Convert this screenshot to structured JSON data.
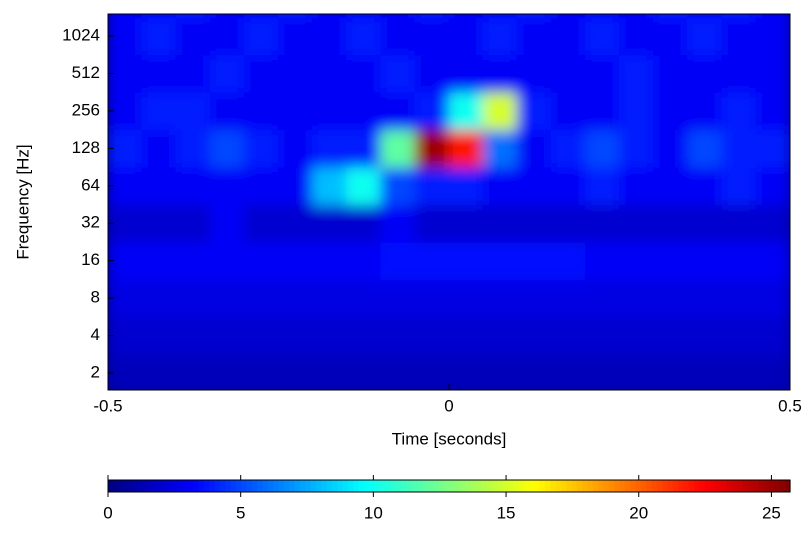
{
  "chart_data": {
    "type": "heatmap",
    "xlabel": "Time [seconds]",
    "ylabel": "Frequency [Hz]",
    "xlim": [
      -0.5,
      0.5
    ],
    "xticks": [
      -0.5,
      0,
      0.5
    ],
    "ylim": [
      1.46,
      1540
    ],
    "yscale": "log2",
    "yticks": [
      2,
      4,
      8,
      16,
      32,
      64,
      128,
      256,
      512,
      1024
    ],
    "x": [
      -0.475,
      -0.425,
      -0.375,
      -0.325,
      -0.275,
      -0.225,
      -0.175,
      -0.125,
      -0.075,
      -0.025,
      0.025,
      0.075,
      0.125,
      0.175,
      0.225,
      0.275,
      0.325,
      0.375,
      0.425,
      0.475
    ],
    "y": [
      2,
      4,
      8,
      16,
      32,
      64,
      128,
      256,
      512,
      1024,
      2048
    ],
    "z": [
      [
        1.5,
        1.5,
        1.5,
        1.5,
        1.5,
        1.5,
        1.5,
        1.5,
        1.5,
        1.5,
        1.5,
        1.5,
        1.5,
        1.5,
        1.5,
        1.5,
        1.5,
        1.5,
        1.5,
        1.5
      ],
      [
        2,
        2,
        2,
        2,
        2,
        2,
        2,
        2,
        2,
        2,
        2,
        2,
        2,
        2,
        2,
        2,
        2,
        2,
        2,
        2
      ],
      [
        2.5,
        2.5,
        2.5,
        2.5,
        2.5,
        2.5,
        2.5,
        2.5,
        2.5,
        2.5,
        2.5,
        2.5,
        2.5,
        2.5,
        2.5,
        2.5,
        2.5,
        2.5,
        2.5,
        2.5
      ],
      [
        3,
        3,
        3,
        3,
        3,
        3,
        3,
        3,
        3.5,
        3.5,
        3.5,
        3.5,
        3.5,
        3.5,
        3,
        3,
        3,
        3,
        3,
        3
      ],
      [
        2,
        2,
        2,
        3,
        2,
        2,
        2,
        2,
        3,
        2,
        2,
        2,
        2,
        2,
        2,
        2,
        2,
        2,
        2,
        2
      ],
      [
        3,
        3,
        3,
        3,
        3,
        3,
        8,
        10,
        5,
        4,
        4,
        3,
        3,
        3,
        4,
        3,
        3,
        3,
        4,
        3
      ],
      [
        4,
        3,
        4,
        5,
        4,
        3,
        4,
        4,
        12,
        25,
        22,
        6,
        3,
        4,
        5,
        4,
        3,
        5,
        4,
        4
      ],
      [
        3,
        4,
        4,
        3,
        3,
        3,
        3,
        3,
        3,
        4,
        10,
        15,
        4,
        3,
        3,
        4,
        3,
        3,
        4,
        3
      ],
      [
        3,
        3,
        3,
        4,
        3,
        3,
        3,
        3,
        4,
        3,
        3,
        3,
        3,
        3,
        3,
        4,
        3,
        3,
        3,
        3
      ],
      [
        3,
        4,
        3,
        3,
        4,
        3,
        3,
        4,
        3,
        3,
        3,
        4,
        3,
        3,
        4,
        3,
        3,
        4,
        3,
        3
      ],
      [
        3,
        3,
        4,
        3,
        3,
        4,
        3,
        3,
        3,
        4,
        3,
        3,
        4,
        3,
        3,
        3,
        4,
        3,
        4,
        3
      ]
    ],
    "colormap": "jet",
    "clim": [
      0,
      25.7
    ],
    "colorbar_ticks": [
      0,
      5,
      10,
      15,
      20,
      25
    ]
  }
}
